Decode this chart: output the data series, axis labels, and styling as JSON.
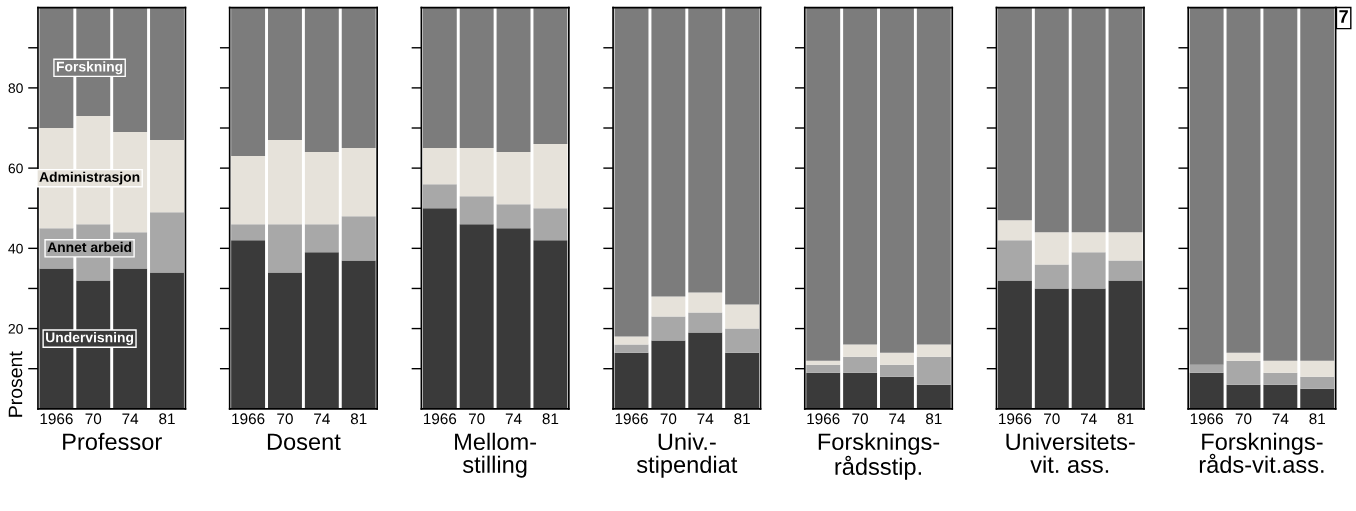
{
  "chart_data": [
    {
      "type": "bar",
      "stacked": true,
      "xlabel": "Professor",
      "ylabel": "Prosent",
      "categories": [
        "1966",
        "70",
        "74",
        "81"
      ],
      "ylim": [
        0,
        100
      ],
      "yticks": [
        {
          "value": 10,
          "label": null
        },
        20,
        {
          "value": 30,
          "label": null
        },
        40,
        {
          "value": 50,
          "label": null
        },
        60,
        {
          "value": 70,
          "label": null
        },
        80,
        {
          "value": 90,
          "label": null
        }
      ],
      "legend": false,
      "series": [
        {
          "name": "Undervisning",
          "color": "#3a3a3a",
          "values": [
            35,
            32,
            35,
            34
          ]
        },
        {
          "name": "Annet arbeid",
          "color": "#a8a8a8",
          "values": [
            10,
            14,
            9,
            15
          ]
        },
        {
          "name": "Administrasjon",
          "color": "#e6e2da",
          "values": [
            25,
            27,
            25,
            18
          ]
        },
        {
          "name": "Forskning",
          "color": "#7c7c7c",
          "values": [
            30,
            27,
            31,
            33
          ]
        }
      ]
    },
    {
      "type": "bar",
      "stacked": true,
      "xlabel": "Dosent",
      "categories": [
        "1966",
        "70",
        "74",
        "81"
      ],
      "ylim": [
        0,
        100
      ],
      "yticks": [
        {
          "value": 10,
          "label": null
        },
        {
          "value": 20,
          "label": null
        },
        {
          "value": 30,
          "label": null
        },
        {
          "value": 40,
          "label": null
        },
        {
          "value": 50,
          "label": null
        },
        {
          "value": 60,
          "label": null
        },
        {
          "value": 70,
          "label": null
        },
        {
          "value": 80,
          "label": null
        },
        {
          "value": 90,
          "label": null
        }
      ],
      "tick_labels": "x",
      "series": [
        {
          "color": "#3a3a3a",
          "values": [
            42,
            34,
            39,
            37
          ]
        },
        {
          "color": "#a8a8a8",
          "values": [
            4,
            12,
            7,
            11
          ]
        },
        {
          "color": "#e6e2da",
          "values": [
            17,
            21,
            18,
            17
          ]
        },
        {
          "color": "#7c7c7c",
          "values": [
            37,
            33,
            36,
            35
          ]
        }
      ]
    },
    {
      "type": "bar",
      "stacked": true,
      "xlabel": "Mellom-\nstilling",
      "categories": [
        "1966",
        "70",
        "74",
        "81"
      ],
      "ylim": [
        0,
        100
      ],
      "yticks": [
        {
          "value": 10,
          "label": null
        },
        {
          "value": 20,
          "label": null
        },
        {
          "value": 30,
          "label": null
        },
        {
          "value": 40,
          "label": null
        },
        {
          "value": 50,
          "label": null
        },
        {
          "value": 60,
          "label": null
        },
        {
          "value": 70,
          "label": null
        },
        {
          "value": 80,
          "label": null
        },
        {
          "value": 90,
          "label": null
        }
      ],
      "tick_labels": "x",
      "series": [
        {
          "color": "#3a3a3a",
          "values": [
            50,
            46,
            45,
            42
          ]
        },
        {
          "color": "#a8a8a8",
          "values": [
            6,
            7,
            6,
            8
          ]
        },
        {
          "color": "#e6e2da",
          "values": [
            9,
            12,
            13,
            16
          ]
        },
        {
          "color": "#7c7c7c",
          "values": [
            35,
            35,
            36,
            34
          ]
        }
      ]
    },
    {
      "type": "bar",
      "stacked": true,
      "xlabel": "Univ.-\nstipendiat",
      "categories": [
        "1966",
        "70",
        "74",
        "81"
      ],
      "ylim": [
        0,
        100
      ],
      "yticks": [
        {
          "value": 10,
          "label": null
        },
        {
          "value": 20,
          "label": null
        },
        {
          "value": 30,
          "label": null
        },
        {
          "value": 40,
          "label": null
        },
        {
          "value": 50,
          "label": null
        },
        {
          "value": 60,
          "label": null
        },
        {
          "value": 70,
          "label": null
        },
        {
          "value": 80,
          "label": null
        },
        {
          "value": 90,
          "label": null
        }
      ],
      "tick_labels": "x",
      "series": [
        {
          "color": "#3a3a3a",
          "values": [
            14,
            17,
            19,
            14
          ]
        },
        {
          "color": "#a8a8a8",
          "values": [
            2,
            6,
            5,
            6
          ]
        },
        {
          "color": "#e6e2da",
          "values": [
            2,
            5,
            5,
            6
          ]
        },
        {
          "color": "#7c7c7c",
          "values": [
            82,
            72,
            71,
            74
          ]
        }
      ]
    },
    {
      "type": "bar",
      "stacked": true,
      "xlabel": "Forsknings-\nrådsstip.",
      "categories": [
        "1966",
        "70",
        "74",
        "81"
      ],
      "ylim": [
        0,
        100
      ],
      "yticks": [
        {
          "value": 10,
          "label": null
        },
        {
          "value": 20,
          "label": null
        },
        {
          "value": 30,
          "label": null
        },
        {
          "value": 40,
          "label": null
        },
        {
          "value": 50,
          "label": null
        },
        {
          "value": 60,
          "label": null
        },
        {
          "value": 70,
          "label": null
        },
        {
          "value": 80,
          "label": null
        },
        {
          "value": 90,
          "label": null
        }
      ],
      "tick_labels": "x",
      "series": [
        {
          "color": "#3a3a3a",
          "values": [
            9,
            9,
            8,
            6
          ]
        },
        {
          "color": "#a8a8a8",
          "values": [
            2,
            4,
            3,
            7
          ]
        },
        {
          "color": "#e6e2da",
          "values": [
            1,
            3,
            3,
            3
          ]
        },
        {
          "color": "#7c7c7c",
          "values": [
            88,
            84,
            86,
            84
          ]
        }
      ]
    },
    {
      "type": "bar",
      "stacked": true,
      "xlabel": "Universitets-\nvit. ass.",
      "categories": [
        "1966",
        "70",
        "74",
        "81"
      ],
      "ylim": [
        0,
        100
      ],
      "yticks": [
        {
          "value": 10,
          "label": null
        },
        {
          "value": 20,
          "label": null
        },
        {
          "value": 30,
          "label": null
        },
        {
          "value": 40,
          "label": null
        },
        {
          "value": 50,
          "label": null
        },
        {
          "value": 60,
          "label": null
        },
        {
          "value": 70,
          "label": null
        },
        {
          "value": 80,
          "label": null
        },
        {
          "value": 90,
          "label": null
        }
      ],
      "tick_labels": "x",
      "series": [
        {
          "color": "#3a3a3a",
          "values": [
            32,
            30,
            30,
            32
          ]
        },
        {
          "color": "#a8a8a8",
          "values": [
            10,
            6,
            9,
            5
          ]
        },
        {
          "color": "#e6e2da",
          "values": [
            5,
            8,
            5,
            7
          ]
        },
        {
          "color": "#7c7c7c",
          "values": [
            53,
            56,
            56,
            56
          ]
        }
      ]
    },
    {
      "type": "bar",
      "stacked": true,
      "xlabel": "Forsknings-\nråds-vit.ass.",
      "categories": [
        "1966",
        "70",
        "74",
        "81"
      ],
      "ylim": [
        0,
        100
      ],
      "yticks": [
        {
          "value": 10,
          "label": null
        },
        {
          "value": 20,
          "label": null
        },
        {
          "value": 30,
          "label": null
        },
        {
          "value": 40,
          "label": null
        },
        {
          "value": 50,
          "label": null
        },
        {
          "value": 60,
          "label": null
        },
        {
          "value": 70,
          "label": null
        },
        {
          "value": 80,
          "label": null
        },
        {
          "value": 90,
          "label": null
        }
      ],
      "tick_labels": "x",
      "annotations": [
        "7"
      ],
      "series": [
        {
          "color": "#3a3a3a",
          "values": [
            9,
            6,
            6,
            5
          ]
        },
        {
          "color": "#a8a8a8",
          "values": [
            2,
            6,
            3,
            3
          ]
        },
        {
          "color": "#e6e2da",
          "values": [
            0,
            2,
            3,
            4
          ]
        },
        {
          "color": "#7c7c7c",
          "values": [
            89,
            86,
            88,
            88
          ]
        }
      ]
    }
  ]
}
